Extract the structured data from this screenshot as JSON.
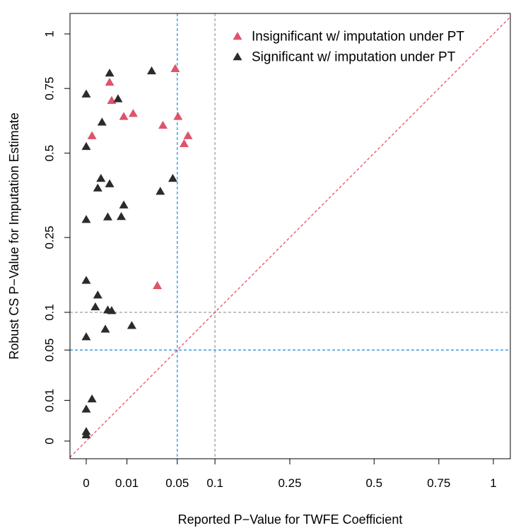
{
  "chart_data": {
    "type": "scatter",
    "xlabel": "Reported P−Value for TWFE Coefficient",
    "ylabel": "Robust CS P−Value for Imputation Estimate",
    "x_scale": "sqrt",
    "y_scale": "sqrt",
    "xlim": [
      0,
      1
    ],
    "ylim": [
      0,
      1
    ],
    "x_ticks": [
      0,
      0.01,
      0.05,
      0.1,
      0.25,
      0.5,
      0.75,
      1
    ],
    "x_tick_labels": [
      "0",
      "0.01",
      "0.05",
      "0.1",
      "0.25",
      "0.5",
      "0.75",
      "1"
    ],
    "y_ticks": [
      0,
      0.01,
      0.05,
      0.1,
      0.25,
      0.5,
      0.75,
      1
    ],
    "y_tick_labels": [
      "0",
      "0.01",
      "0.05",
      "0.1",
      "0.25",
      "0.5",
      "0.75",
      "1"
    ],
    "reference_lines": [
      {
        "orientation": "vertical",
        "value": 0.05,
        "color": "#2297e6",
        "style": "dashed"
      },
      {
        "orientation": "vertical",
        "value": 0.1,
        "color": "#9e9e9e",
        "style": "dashed"
      },
      {
        "orientation": "horizontal",
        "value": 0.05,
        "color": "#2297e6",
        "style": "dashed"
      },
      {
        "orientation": "horizontal",
        "value": 0.1,
        "color": "#9e9e9e",
        "style": "dashed"
      },
      {
        "orientation": "diagonal",
        "from": [
          0,
          0
        ],
        "to": [
          1,
          1
        ],
        "color": "#df536b",
        "style": "dashed"
      }
    ],
    "legend_position": "top-right",
    "series": [
      {
        "name": "Insignificant w/ imputation under PT",
        "color": "#df536b",
        "marker": "triangle",
        "points": [
          [
            0.0002,
            0.561
          ],
          [
            0.0033,
            0.775
          ],
          [
            0.0039,
            0.698
          ],
          [
            0.0085,
            0.634
          ],
          [
            0.0133,
            0.646
          ],
          [
            0.0355,
            0.6
          ],
          [
            0.0478,
            0.835
          ],
          [
            0.0508,
            0.634
          ],
          [
            0.0578,
            0.532
          ],
          [
            0.0625,
            0.561
          ],
          [
            0.0305,
            0.145
          ]
        ]
      },
      {
        "name": "Significant w/ imputation under PT",
        "color": "#2b2b2b",
        "marker": "triangle",
        "points": [
          [
            0.0,
            0.725
          ],
          [
            0.0,
            0.522
          ],
          [
            0.0,
            0.295
          ],
          [
            0.0,
            0.155
          ],
          [
            0.0,
            0.065
          ],
          [
            0.0,
            0.006
          ],
          [
            0.0,
            0.0005
          ],
          [
            0.0,
            0.0002
          ],
          [
            0.0002,
            0.0105
          ],
          [
            0.0005,
            0.108
          ],
          [
            0.0008,
            0.385
          ],
          [
            0.0008,
            0.128
          ],
          [
            0.0013,
            0.415
          ],
          [
            0.0015,
            0.612
          ],
          [
            0.0022,
            0.075
          ],
          [
            0.0028,
            0.302
          ],
          [
            0.0028,
            0.103
          ],
          [
            0.0033,
            0.398
          ],
          [
            0.0033,
            0.815
          ],
          [
            0.0039,
            0.102
          ],
          [
            0.0061,
            0.705
          ],
          [
            0.0074,
            0.303
          ],
          [
            0.0085,
            0.335
          ],
          [
            0.0125,
            0.08
          ],
          [
            0.0258,
            0.825
          ],
          [
            0.0331,
            0.375
          ],
          [
            0.0452,
            0.415
          ]
        ]
      }
    ]
  }
}
